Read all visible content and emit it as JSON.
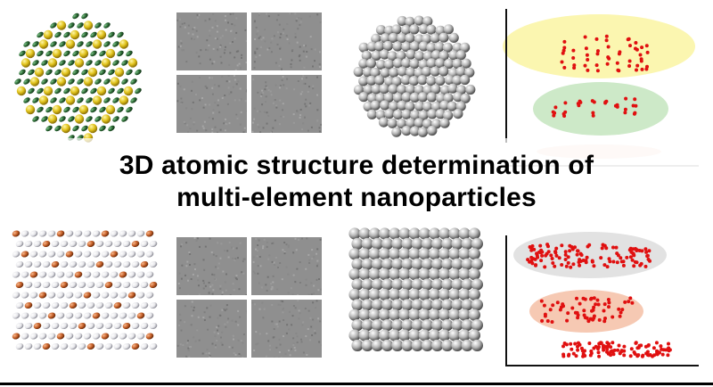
{
  "title": {
    "line1": "3D atomic structure determination of",
    "line2": "multi-element nanoparticles"
  },
  "colors": {
    "gold_atom": "#e0c21a",
    "green_atom": "#2c6b35",
    "orange_atom": "#c8622a",
    "white_atom": "#e8e8ea",
    "grey_atom": "#a8a8a8",
    "scatter_red": "#e01010",
    "yellow_ellipse": "#fbf6b0",
    "green_ellipse": "#cde9c8",
    "grey_ellipse": "#e2e2e2",
    "salmon_ellipse": "#f6c9b3"
  },
  "panels": {
    "top_left": {
      "name": "gold-green-nanoparticle-model"
    },
    "top_micrographs": {
      "name": "electron-micrograph-grid-top"
    },
    "top_grey": {
      "name": "grey-atom-nanoparticle-top"
    },
    "top_scatter": {
      "name": "scatter-clusters-top"
    },
    "bottom_left": {
      "name": "orange-white-lattice-model"
    },
    "bottom_micrographs": {
      "name": "electron-micrograph-grid-bottom"
    },
    "bottom_grey": {
      "name": "grey-atom-lattice-block"
    },
    "bottom_scatter": {
      "name": "scatter-clusters-bottom"
    }
  }
}
